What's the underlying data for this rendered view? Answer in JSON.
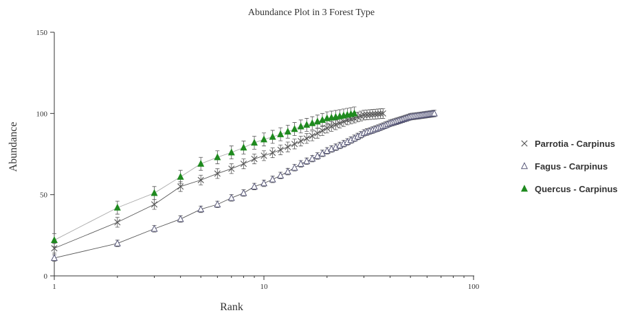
{
  "chart_data": {
    "type": "line",
    "title": "Abundance Plot in 3 Forest Type",
    "xlabel": "Rank",
    "ylabel": "Abundance",
    "xscale": "log",
    "xlim": [
      1,
      100
    ],
    "ylim": [
      0,
      150
    ],
    "x_ticks": [
      1,
      10,
      100
    ],
    "x_tick_labels": [
      "1",
      "10",
      "100"
    ],
    "y_ticks": [
      0,
      50,
      100,
      150
    ],
    "y_tick_labels": [
      "0",
      "50",
      "100",
      "150"
    ],
    "grid": false,
    "legend_position": "right",
    "series": [
      {
        "name": "Parrotia - Carpinus",
        "marker": "x",
        "color": "#555555",
        "marker_color": "#555555",
        "n_points": 37,
        "anchors": [
          [
            1,
            17
          ],
          [
            2,
            33
          ],
          [
            3,
            44
          ],
          [
            4,
            55
          ],
          [
            5,
            59
          ],
          [
            6,
            63
          ],
          [
            7,
            66
          ],
          [
            8,
            69
          ],
          [
            9,
            72
          ],
          [
            10,
            74
          ],
          [
            15,
            83
          ],
          [
            20,
            91
          ],
          [
            25,
            96
          ],
          [
            30,
            99
          ],
          [
            37,
            100
          ]
        ],
        "error": 3
      },
      {
        "name": "Fagus - Carpinus",
        "marker": "triangle-open",
        "color": "#555555",
        "marker_color": "#555577",
        "n_points": 65,
        "anchors": [
          [
            1,
            11
          ],
          [
            2,
            20
          ],
          [
            3,
            29
          ],
          [
            4,
            35
          ],
          [
            5,
            41
          ],
          [
            6,
            44
          ],
          [
            7,
            48
          ],
          [
            8,
            51
          ],
          [
            9,
            55
          ],
          [
            10,
            57
          ],
          [
            15,
            69
          ],
          [
            20,
            77
          ],
          [
            30,
            88
          ],
          [
            40,
            94
          ],
          [
            50,
            98
          ],
          [
            65,
            100
          ]
        ],
        "error": 2
      },
      {
        "name": "Quercus - Carpinus",
        "marker": "triangle-filled",
        "color": "#aaaaaa",
        "marker_color": "#1f8a1f",
        "n_points": 27,
        "anchors": [
          [
            1,
            22
          ],
          [
            2,
            42
          ],
          [
            3,
            51
          ],
          [
            4,
            61
          ],
          [
            5,
            69
          ],
          [
            6,
            73
          ],
          [
            7,
            76
          ],
          [
            8,
            79
          ],
          [
            9,
            82
          ],
          [
            10,
            84
          ],
          [
            15,
            92
          ],
          [
            20,
            97
          ],
          [
            27,
            100
          ]
        ],
        "error": 4
      }
    ]
  }
}
